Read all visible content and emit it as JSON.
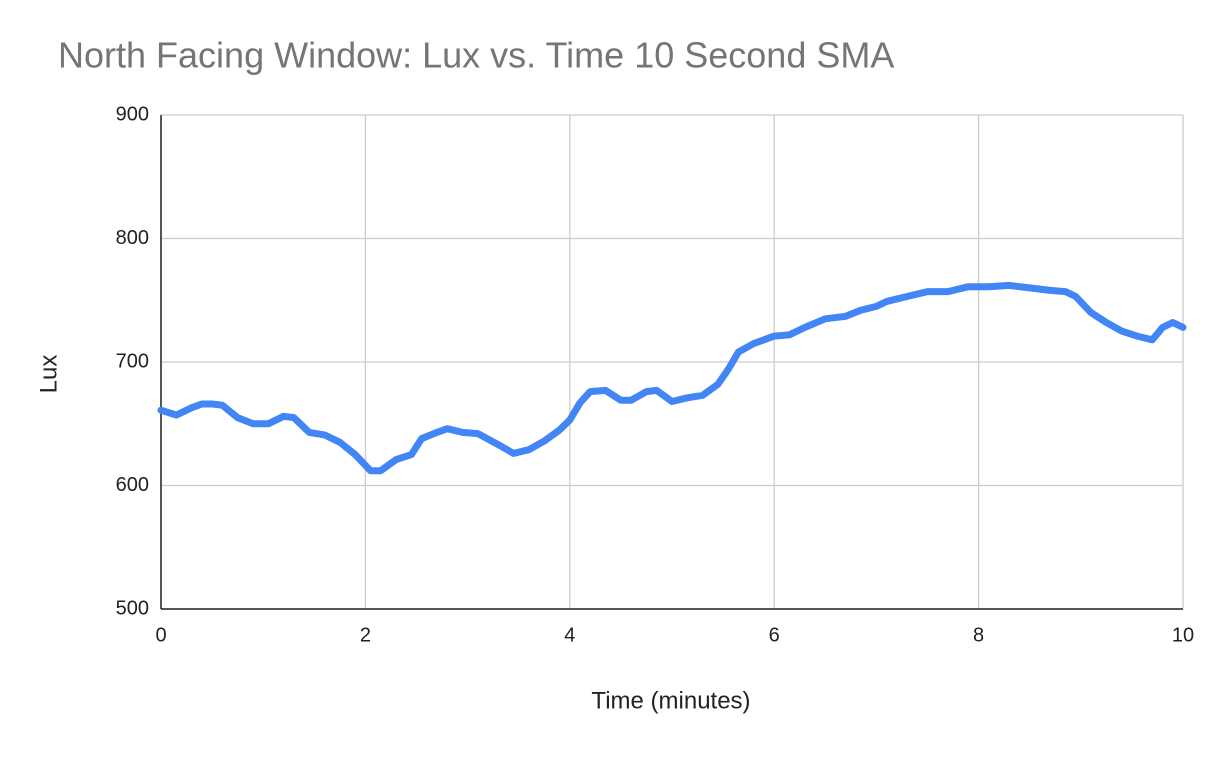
{
  "chart_data": {
    "type": "line",
    "title": "North Facing Window: Lux vs. Time 10 Second SMA",
    "x_label": "Time (minutes)",
    "y_label": "Lux",
    "x": [
      0,
      0.15,
      0.3,
      0.4,
      0.5,
      0.6,
      0.75,
      0.9,
      1.05,
      1.2,
      1.3,
      1.45,
      1.6,
      1.75,
      1.9,
      2.05,
      2.15,
      2.3,
      2.45,
      2.55,
      2.7,
      2.8,
      2.95,
      3.1,
      3.3,
      3.45,
      3.6,
      3.75,
      3.9,
      4.0,
      4.1,
      4.2,
      4.35,
      4.5,
      4.6,
      4.75,
      4.85,
      5.0,
      5.15,
      5.3,
      5.45,
      5.55,
      5.65,
      5.8,
      6.0,
      6.15,
      6.3,
      6.5,
      6.7,
      6.85,
      7.0,
      7.1,
      7.3,
      7.5,
      7.7,
      7.9,
      8.1,
      8.3,
      8.5,
      8.7,
      8.85,
      8.95,
      9.1,
      9.25,
      9.4,
      9.55,
      9.7,
      9.8,
      9.9,
      10.0
    ],
    "series": [
      {
        "name": "Lux",
        "color": "#4285f4",
        "values": [
          661,
          657,
          663,
          666,
          666,
          665,
          655,
          650,
          650,
          656,
          655,
          643,
          641,
          635,
          625,
          612,
          612,
          621,
          625,
          638,
          643,
          646,
          643,
          642,
          633,
          626,
          629,
          636,
          645,
          653,
          667,
          676,
          677,
          669,
          669,
          676,
          677,
          668,
          671,
          673,
          682,
          694,
          708,
          715,
          721,
          722,
          728,
          735,
          737,
          742,
          745,
          749,
          753,
          757,
          757,
          761,
          761,
          762,
          760,
          758,
          757,
          753,
          740,
          732,
          725,
          721,
          718,
          728,
          732,
          728
        ]
      }
    ],
    "xlim": [
      0,
      10
    ],
    "xticks": [
      0,
      2,
      4,
      6,
      8,
      10
    ],
    "ylim": [
      500,
      900
    ],
    "yticks": [
      500,
      600,
      700,
      800,
      900
    ],
    "grid": true
  }
}
